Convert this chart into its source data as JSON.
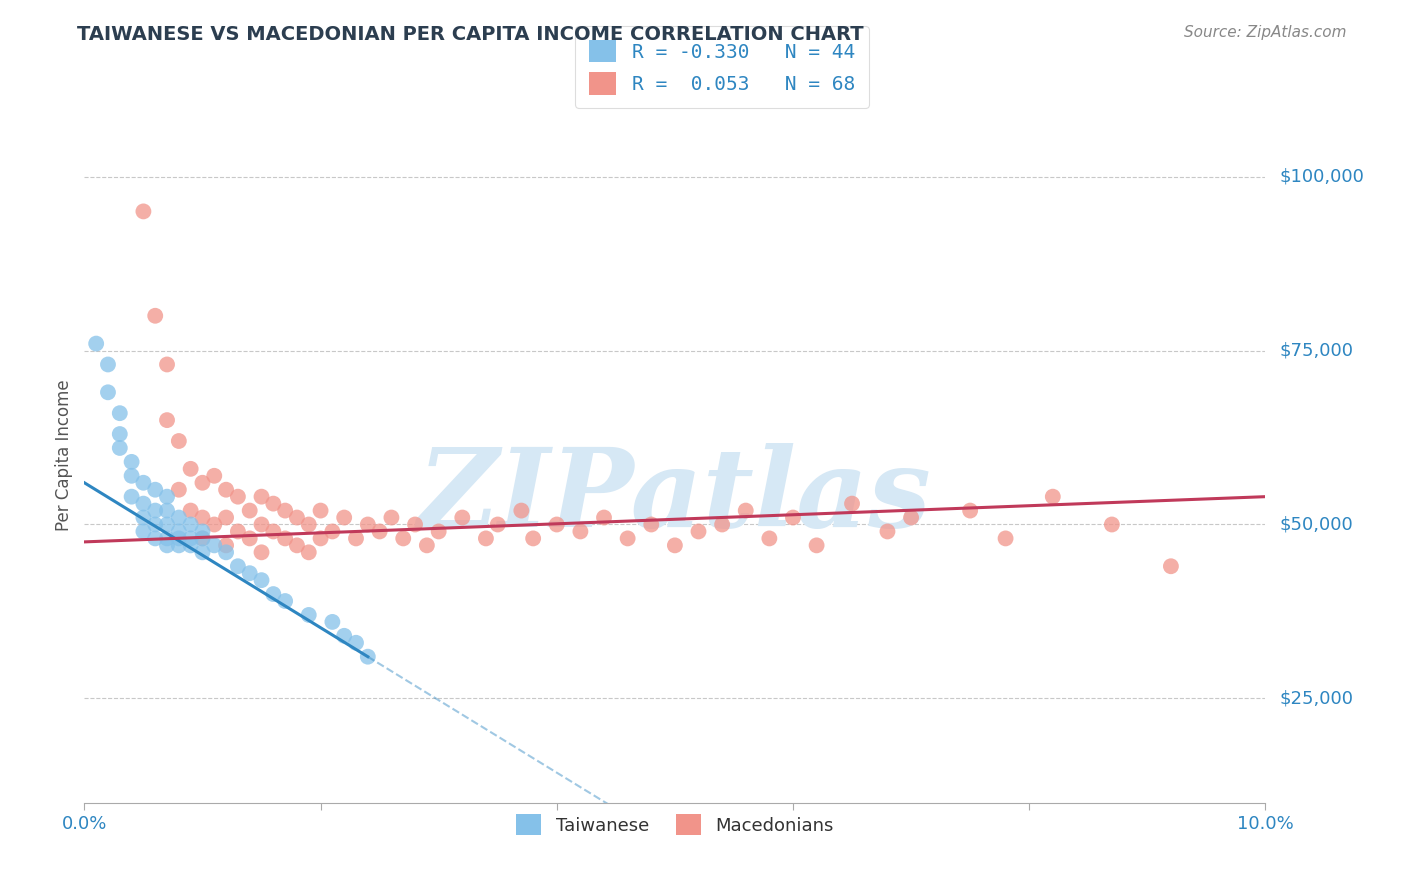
{
  "title": "TAIWANESE VS MACEDONIAN PER CAPITA INCOME CORRELATION CHART",
  "source": "Source: ZipAtlas.com",
  "ylabel": "Per Capita Income",
  "xlim": [
    0.0,
    0.1
  ],
  "ylim": [
    10000,
    110000
  ],
  "yticks": [
    25000,
    50000,
    75000,
    100000
  ],
  "ytick_labels": [
    "$25,000",
    "$50,000",
    "$75,000",
    "$100,000"
  ],
  "xticks": [
    0.0,
    0.02,
    0.04,
    0.06,
    0.08,
    0.1
  ],
  "xtick_labels": [
    "0.0%",
    "",
    "",
    "",
    "",
    "10.0%"
  ],
  "watermark": "ZIPatlas",
  "legend_blue_label": "R = -0.330   N = 44",
  "legend_pink_label": "R =  0.053   N = 68",
  "legend_bottom_label1": "Taiwanese",
  "legend_bottom_label2": "Macedonians",
  "blue_color": "#85c1e9",
  "pink_color": "#f1948a",
  "blue_line_color": "#2e86c1",
  "pink_line_color": "#c0395a",
  "watermark_color": "#d6e8f5",
  "title_color": "#2c3e50",
  "axis_label_color": "#555555",
  "ytick_color": "#2e86c1",
  "grid_color": "#c8c8c8",
  "tw_line_x0": 0.0,
  "tw_line_y0": 56000,
  "tw_line_x1": 0.024,
  "tw_line_y1": 31000,
  "tw_line_solid_end": 0.024,
  "tw_line_dashed_end": 0.1,
  "mac_line_x0": 0.0,
  "mac_line_y0": 47500,
  "mac_line_x1": 0.1,
  "mac_line_y1": 54000,
  "taiwanese_x": [
    0.001,
    0.002,
    0.002,
    0.003,
    0.003,
    0.003,
    0.004,
    0.004,
    0.004,
    0.005,
    0.005,
    0.005,
    0.005,
    0.006,
    0.006,
    0.006,
    0.006,
    0.007,
    0.007,
    0.007,
    0.007,
    0.007,
    0.008,
    0.008,
    0.008,
    0.008,
    0.009,
    0.009,
    0.009,
    0.01,
    0.01,
    0.01,
    0.011,
    0.012,
    0.013,
    0.014,
    0.015,
    0.016,
    0.017,
    0.019,
    0.021,
    0.022,
    0.023,
    0.024
  ],
  "taiwanese_y": [
    76000,
    73000,
    69000,
    66000,
    63000,
    61000,
    59000,
    57000,
    54000,
    56000,
    53000,
    51000,
    49000,
    55000,
    52000,
    50000,
    48000,
    54000,
    52000,
    50000,
    48000,
    47000,
    51000,
    49000,
    48000,
    47000,
    50000,
    48000,
    47000,
    49000,
    48000,
    46000,
    47000,
    46000,
    44000,
    43000,
    42000,
    40000,
    39000,
    37000,
    36000,
    34000,
    33000,
    31000
  ],
  "macedonian_x": [
    0.005,
    0.006,
    0.007,
    0.007,
    0.008,
    0.008,
    0.009,
    0.009,
    0.01,
    0.01,
    0.01,
    0.011,
    0.011,
    0.012,
    0.012,
    0.012,
    0.013,
    0.013,
    0.014,
    0.014,
    0.015,
    0.015,
    0.015,
    0.016,
    0.016,
    0.017,
    0.017,
    0.018,
    0.018,
    0.019,
    0.019,
    0.02,
    0.02,
    0.021,
    0.022,
    0.023,
    0.024,
    0.025,
    0.026,
    0.027,
    0.028,
    0.029,
    0.03,
    0.032,
    0.034,
    0.035,
    0.037,
    0.038,
    0.04,
    0.042,
    0.044,
    0.046,
    0.048,
    0.05,
    0.052,
    0.054,
    0.056,
    0.058,
    0.06,
    0.062,
    0.065,
    0.068,
    0.07,
    0.075,
    0.078,
    0.082,
    0.087,
    0.092
  ],
  "macedonian_y": [
    95000,
    80000,
    73000,
    65000,
    62000,
    55000,
    58000,
    52000,
    56000,
    51000,
    48000,
    57000,
    50000,
    55000,
    51000,
    47000,
    54000,
    49000,
    52000,
    48000,
    54000,
    50000,
    46000,
    53000,
    49000,
    52000,
    48000,
    51000,
    47000,
    50000,
    46000,
    52000,
    48000,
    49000,
    51000,
    48000,
    50000,
    49000,
    51000,
    48000,
    50000,
    47000,
    49000,
    51000,
    48000,
    50000,
    52000,
    48000,
    50000,
    49000,
    51000,
    48000,
    50000,
    47000,
    49000,
    50000,
    52000,
    48000,
    51000,
    47000,
    53000,
    49000,
    51000,
    52000,
    48000,
    54000,
    50000,
    44000
  ]
}
